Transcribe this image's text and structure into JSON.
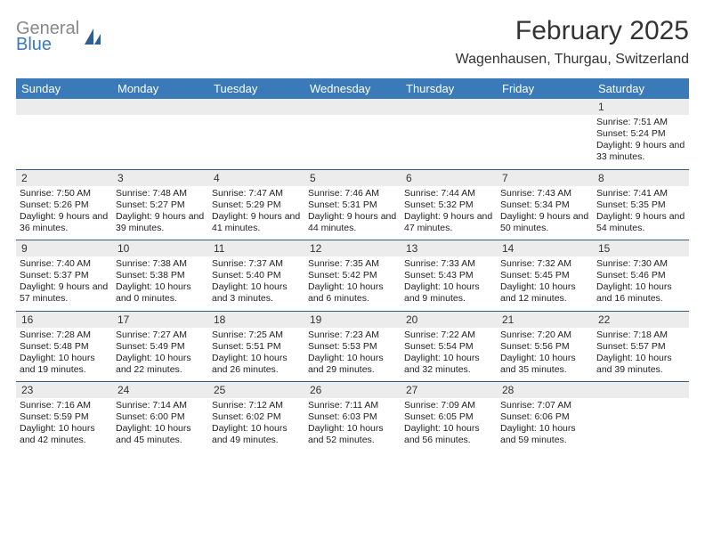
{
  "brand": {
    "text1": "General",
    "text2": "Blue",
    "color_general": "#888888",
    "color_blue": "#3a7ab8"
  },
  "title": "February 2025",
  "location": "Wagenhausen, Thurgau, Switzerland",
  "header_bg": "#3a7ab8",
  "header_fg": "#ffffff",
  "row_divider": "#3a5a7a",
  "daynum_bg": "#ececec",
  "days": [
    "Sunday",
    "Monday",
    "Tuesday",
    "Wednesday",
    "Thursday",
    "Friday",
    "Saturday"
  ],
  "weeks": [
    [
      {
        "n": "",
        "sunrise": "",
        "sunset": "",
        "daylight": ""
      },
      {
        "n": "",
        "sunrise": "",
        "sunset": "",
        "daylight": ""
      },
      {
        "n": "",
        "sunrise": "",
        "sunset": "",
        "daylight": ""
      },
      {
        "n": "",
        "sunrise": "",
        "sunset": "",
        "daylight": ""
      },
      {
        "n": "",
        "sunrise": "",
        "sunset": "",
        "daylight": ""
      },
      {
        "n": "",
        "sunrise": "",
        "sunset": "",
        "daylight": ""
      },
      {
        "n": "1",
        "sunrise": "Sunrise: 7:51 AM",
        "sunset": "Sunset: 5:24 PM",
        "daylight": "Daylight: 9 hours and 33 minutes."
      }
    ],
    [
      {
        "n": "2",
        "sunrise": "Sunrise: 7:50 AM",
        "sunset": "Sunset: 5:26 PM",
        "daylight": "Daylight: 9 hours and 36 minutes."
      },
      {
        "n": "3",
        "sunrise": "Sunrise: 7:48 AM",
        "sunset": "Sunset: 5:27 PM",
        "daylight": "Daylight: 9 hours and 39 minutes."
      },
      {
        "n": "4",
        "sunrise": "Sunrise: 7:47 AM",
        "sunset": "Sunset: 5:29 PM",
        "daylight": "Daylight: 9 hours and 41 minutes."
      },
      {
        "n": "5",
        "sunrise": "Sunrise: 7:46 AM",
        "sunset": "Sunset: 5:31 PM",
        "daylight": "Daylight: 9 hours and 44 minutes."
      },
      {
        "n": "6",
        "sunrise": "Sunrise: 7:44 AM",
        "sunset": "Sunset: 5:32 PM",
        "daylight": "Daylight: 9 hours and 47 minutes."
      },
      {
        "n": "7",
        "sunrise": "Sunrise: 7:43 AM",
        "sunset": "Sunset: 5:34 PM",
        "daylight": "Daylight: 9 hours and 50 minutes."
      },
      {
        "n": "8",
        "sunrise": "Sunrise: 7:41 AM",
        "sunset": "Sunset: 5:35 PM",
        "daylight": "Daylight: 9 hours and 54 minutes."
      }
    ],
    [
      {
        "n": "9",
        "sunrise": "Sunrise: 7:40 AM",
        "sunset": "Sunset: 5:37 PM",
        "daylight": "Daylight: 9 hours and 57 minutes."
      },
      {
        "n": "10",
        "sunrise": "Sunrise: 7:38 AM",
        "sunset": "Sunset: 5:38 PM",
        "daylight": "Daylight: 10 hours and 0 minutes."
      },
      {
        "n": "11",
        "sunrise": "Sunrise: 7:37 AM",
        "sunset": "Sunset: 5:40 PM",
        "daylight": "Daylight: 10 hours and 3 minutes."
      },
      {
        "n": "12",
        "sunrise": "Sunrise: 7:35 AM",
        "sunset": "Sunset: 5:42 PM",
        "daylight": "Daylight: 10 hours and 6 minutes."
      },
      {
        "n": "13",
        "sunrise": "Sunrise: 7:33 AM",
        "sunset": "Sunset: 5:43 PM",
        "daylight": "Daylight: 10 hours and 9 minutes."
      },
      {
        "n": "14",
        "sunrise": "Sunrise: 7:32 AM",
        "sunset": "Sunset: 5:45 PM",
        "daylight": "Daylight: 10 hours and 12 minutes."
      },
      {
        "n": "15",
        "sunrise": "Sunrise: 7:30 AM",
        "sunset": "Sunset: 5:46 PM",
        "daylight": "Daylight: 10 hours and 16 minutes."
      }
    ],
    [
      {
        "n": "16",
        "sunrise": "Sunrise: 7:28 AM",
        "sunset": "Sunset: 5:48 PM",
        "daylight": "Daylight: 10 hours and 19 minutes."
      },
      {
        "n": "17",
        "sunrise": "Sunrise: 7:27 AM",
        "sunset": "Sunset: 5:49 PM",
        "daylight": "Daylight: 10 hours and 22 minutes."
      },
      {
        "n": "18",
        "sunrise": "Sunrise: 7:25 AM",
        "sunset": "Sunset: 5:51 PM",
        "daylight": "Daylight: 10 hours and 26 minutes."
      },
      {
        "n": "19",
        "sunrise": "Sunrise: 7:23 AM",
        "sunset": "Sunset: 5:53 PM",
        "daylight": "Daylight: 10 hours and 29 minutes."
      },
      {
        "n": "20",
        "sunrise": "Sunrise: 7:22 AM",
        "sunset": "Sunset: 5:54 PM",
        "daylight": "Daylight: 10 hours and 32 minutes."
      },
      {
        "n": "21",
        "sunrise": "Sunrise: 7:20 AM",
        "sunset": "Sunset: 5:56 PM",
        "daylight": "Daylight: 10 hours and 35 minutes."
      },
      {
        "n": "22",
        "sunrise": "Sunrise: 7:18 AM",
        "sunset": "Sunset: 5:57 PM",
        "daylight": "Daylight: 10 hours and 39 minutes."
      }
    ],
    [
      {
        "n": "23",
        "sunrise": "Sunrise: 7:16 AM",
        "sunset": "Sunset: 5:59 PM",
        "daylight": "Daylight: 10 hours and 42 minutes."
      },
      {
        "n": "24",
        "sunrise": "Sunrise: 7:14 AM",
        "sunset": "Sunset: 6:00 PM",
        "daylight": "Daylight: 10 hours and 45 minutes."
      },
      {
        "n": "25",
        "sunrise": "Sunrise: 7:12 AM",
        "sunset": "Sunset: 6:02 PM",
        "daylight": "Daylight: 10 hours and 49 minutes."
      },
      {
        "n": "26",
        "sunrise": "Sunrise: 7:11 AM",
        "sunset": "Sunset: 6:03 PM",
        "daylight": "Daylight: 10 hours and 52 minutes."
      },
      {
        "n": "27",
        "sunrise": "Sunrise: 7:09 AM",
        "sunset": "Sunset: 6:05 PM",
        "daylight": "Daylight: 10 hours and 56 minutes."
      },
      {
        "n": "28",
        "sunrise": "Sunrise: 7:07 AM",
        "sunset": "Sunset: 6:06 PM",
        "daylight": "Daylight: 10 hours and 59 minutes."
      },
      {
        "n": "",
        "sunrise": "",
        "sunset": "",
        "daylight": ""
      }
    ]
  ]
}
